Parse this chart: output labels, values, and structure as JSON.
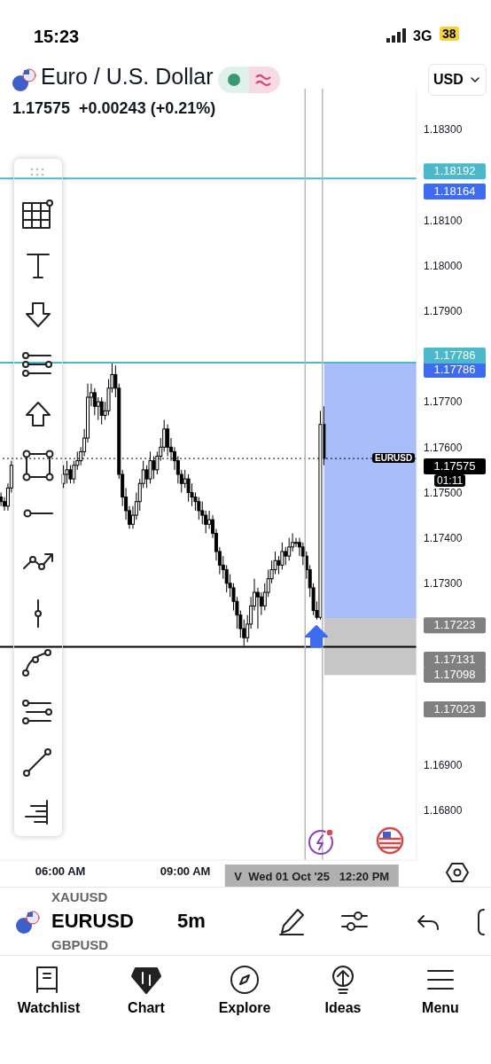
{
  "chart_data": {
    "type": "candlestick",
    "title": "Euro / U.S. Dollar",
    "subtitle": "1.17575  +0.00243 (+0.21%)",
    "color": "#000000",
    "x": [
      4.5833,
      4.6667,
      4.75,
      4.8333,
      6.0833,
      6.1667,
      6.25,
      6.3333,
      6.4167,
      6.5,
      6.5833,
      6.6667,
      6.75,
      6.8333,
      6.9167,
      7,
      7.0833,
      7.1667,
      7.25,
      7.3333,
      7.4167,
      7.5,
      7.5833,
      7.6667,
      7.75,
      7.8333,
      7.9167,
      8,
      8.0833,
      8.1667,
      8.25,
      8.3333,
      8.4167,
      8.5,
      8.5833,
      8.6667,
      8.75,
      8.8333,
      8.9167,
      9,
      9.0833,
      9.1667,
      9.25,
      9.3333,
      9.4167,
      9.5,
      9.5833,
      9.6667,
      9.75,
      9.8333,
      9.9167,
      10,
      10.0833,
      10.1667,
      10.25,
      10.3333,
      10.4167,
      10.5,
      10.5833,
      10.6667,
      10.75,
      10.8333,
      10.9167,
      11,
      11.0833,
      11.1667,
      11.25,
      11.3333,
      11.4167,
      11.5,
      11.5833,
      11.6667,
      11.75,
      11.8333,
      11.9167,
      12,
      12.0833,
      12.1667,
      12.25,
      12.3333
    ],
    "ohlc": [
      [
        1.1749,
        1.175,
        1.1747,
        1.1748
      ],
      [
        1.1748,
        1.1749,
        1.1746,
        1.1747
      ],
      [
        1.1747,
        1.1752,
        1.1746,
        1.1751
      ],
      [
        1.1751,
        1.1757,
        1.175,
        1.1756
      ],
      [
        1.1752,
        1.1756,
        1.1751,
        1.1754
      ],
      [
        1.1754,
        1.1757,
        1.1752,
        1.1755
      ],
      [
        1.1755,
        1.1756,
        1.1752,
        1.1753
      ],
      [
        1.1753,
        1.1757,
        1.1752,
        1.1756
      ],
      [
        1.1756,
        1.1759,
        1.1755,
        1.1757
      ],
      [
        1.1757,
        1.176,
        1.1756,
        1.1759
      ],
      [
        1.1759,
        1.1764,
        1.1758,
        1.1762
      ],
      [
        1.1762,
        1.1774,
        1.1761,
        1.1771
      ],
      [
        1.1771,
        1.1774,
        1.1769,
        1.1772
      ],
      [
        1.1772,
        1.1773,
        1.1767,
        1.1769
      ],
      [
        1.1769,
        1.1771,
        1.1766,
        1.177
      ],
      [
        1.177,
        1.1771,
        1.1765,
        1.1767
      ],
      [
        1.1767,
        1.177,
        1.1766,
        1.1768
      ],
      [
        1.1768,
        1.1775,
        1.1767,
        1.1773
      ],
      [
        1.1773,
        1.17786,
        1.1772,
        1.1776
      ],
      [
        1.1776,
        1.1778,
        1.1771,
        1.1773
      ],
      [
        1.1773,
        1.1774,
        1.1753,
        1.1754
      ],
      [
        1.1754,
        1.1755,
        1.1747,
        1.1749
      ],
      [
        1.1749,
        1.1751,
        1.1744,
        1.1746
      ],
      [
        1.1746,
        1.1747,
        1.1742,
        1.1743
      ],
      [
        1.1743,
        1.1747,
        1.1742,
        1.1745
      ],
      [
        1.1745,
        1.175,
        1.1744,
        1.1748
      ],
      [
        1.1748,
        1.1753,
        1.1746,
        1.1752
      ],
      [
        1.1752,
        1.1757,
        1.1751,
        1.1755
      ],
      [
        1.1755,
        1.1756,
        1.1751,
        1.1753
      ],
      [
        1.1753,
        1.1759,
        1.1752,
        1.1757
      ],
      [
        1.1757,
        1.1758,
        1.1753,
        1.1755
      ],
      [
        1.1755,
        1.1759,
        1.1754,
        1.1758
      ],
      [
        1.1758,
        1.1762,
        1.1757,
        1.176
      ],
      [
        1.176,
        1.1766,
        1.1759,
        1.1764
      ],
      [
        1.1764,
        1.1765,
        1.1758,
        1.176
      ],
      [
        1.176,
        1.1762,
        1.1757,
        1.1759
      ],
      [
        1.1759,
        1.176,
        1.1755,
        1.1757
      ],
      [
        1.1757,
        1.1758,
        1.1752,
        1.1754
      ],
      [
        1.1754,
        1.1755,
        1.175,
        1.1752
      ],
      [
        1.1752,
        1.1755,
        1.1751,
        1.1753
      ],
      [
        1.1753,
        1.1754,
        1.1748,
        1.175
      ],
      [
        1.175,
        1.1752,
        1.1747,
        1.1749
      ],
      [
        1.1749,
        1.175,
        1.1746,
        1.1748
      ],
      [
        1.1748,
        1.1749,
        1.1744,
        1.1746
      ],
      [
        1.1746,
        1.1748,
        1.1743,
        1.1745
      ],
      [
        1.1745,
        1.1746,
        1.1741,
        1.1743
      ],
      [
        1.1743,
        1.1746,
        1.1742,
        1.1744
      ],
      [
        1.1744,
        1.1745,
        1.174,
        1.1741
      ],
      [
        1.1741,
        1.1742,
        1.1735,
        1.1737
      ],
      [
        1.1737,
        1.1738,
        1.1732,
        1.1734
      ],
      [
        1.1734,
        1.1736,
        1.1731,
        1.1733
      ],
      [
        1.1733,
        1.1734,
        1.1728,
        1.173
      ],
      [
        1.173,
        1.1732,
        1.1727,
        1.1729
      ],
      [
        1.1729,
        1.173,
        1.1724,
        1.1726
      ],
      [
        1.1726,
        1.1727,
        1.172,
        1.1723
      ],
      [
        1.1723,
        1.1724,
        1.1718,
        1.172
      ],
      [
        1.172,
        1.1722,
        1.17162,
        1.1718
      ],
      [
        1.1718,
        1.1723,
        1.1717,
        1.1721
      ],
      [
        1.1721,
        1.1727,
        1.172,
        1.1725
      ],
      [
        1.1725,
        1.1731,
        1.1724,
        1.1728
      ],
      [
        1.1728,
        1.1729,
        1.172,
        1.1727
      ],
      [
        1.1727,
        1.1728,
        1.1723,
        1.1725
      ],
      [
        1.1725,
        1.173,
        1.1724,
        1.1728
      ],
      [
        1.1728,
        1.1733,
        1.1727,
        1.1731
      ],
      [
        1.1731,
        1.1735,
        1.173,
        1.1733
      ],
      [
        1.1733,
        1.1737,
        1.1732,
        1.1735
      ],
      [
        1.1735,
        1.1736,
        1.1732,
        1.1734
      ],
      [
        1.1734,
        1.1739,
        1.1733,
        1.1737
      ],
      [
        1.1737,
        1.1738,
        1.1734,
        1.1736
      ],
      [
        1.1736,
        1.174,
        1.1735,
        1.1738
      ],
      [
        1.1738,
        1.1741,
        1.1737,
        1.1739
      ],
      [
        1.1739,
        1.174,
        1.1738,
        1.1739
      ],
      [
        1.1739,
        1.174,
        1.1736,
        1.1738
      ],
      [
        1.1738,
        1.1739,
        1.1734,
        1.1736
      ],
      [
        1.1736,
        1.1737,
        1.1731,
        1.1733
      ],
      [
        1.1733,
        1.1734,
        1.1727,
        1.1729
      ],
      [
        1.1729,
        1.173,
        1.1723,
        1.1724
      ],
      [
        1.1724,
        1.1726,
        1.1722,
        1.17225
      ],
      [
        1.17225,
        1.1768,
        1.1722,
        1.1765
      ],
      [
        1.1765,
        1.1769,
        1.1756,
        1.17575
      ]
    ],
    "xlim": [
      4.55,
      14.55
    ],
    "xticks": [
      {
        "value": 6,
        "label": "06:00 AM"
      },
      {
        "value": 9,
        "label": "09:00 AM"
      }
    ],
    "ylim": [
      1.1669,
      1.1839
    ],
    "yticks": [
      {
        "value": 1.168,
        "label": "1.16800"
      },
      {
        "value": 1.169,
        "label": "1.16900"
      },
      {
        "value": 1.173,
        "label": "1.17300"
      },
      {
        "value": 1.174,
        "label": "1.17400"
      },
      {
        "value": 1.175,
        "label": "1.17500"
      },
      {
        "value": 1.176,
        "label": "1.17600"
      },
      {
        "value": 1.177,
        "label": "1.17700"
      },
      {
        "value": 1.179,
        "label": "1.17900"
      },
      {
        "value": 1.18,
        "label": "1.18000"
      },
      {
        "value": 1.181,
        "label": "1.18100"
      },
      {
        "value": 1.183,
        "label": "1.18300"
      }
    ],
    "ref_lines": [
      {
        "axis": "y",
        "value": 1.18192,
        "label": "1.18192",
        "color": "#4bb8cc"
      },
      {
        "axis": "y",
        "value": 1.17786,
        "label": "1.17786",
        "color": "#4bb8cc"
      },
      {
        "axis": "y",
        "value": 1.17575,
        "label": "1.17575",
        "color": "#000000",
        "line_style": "dotted"
      },
      {
        "axis": "y",
        "value": 1.1716,
        "color": "#000000"
      },
      {
        "axis": "x",
        "value": 11.875,
        "color": "#b8b8b8"
      },
      {
        "axis": "x",
        "value": 12.29,
        "label": "V  Wed 01 Oct '25   12:20 PM",
        "color": "#b8b8b8"
      }
    ],
    "bands": [
      {
        "axis": "y",
        "from": 1.17223,
        "to": 1.17786,
        "label": "1.17786",
        "color": "#3d6cf2"
      },
      {
        "axis": "y",
        "from": 1.17098,
        "to": 1.17223,
        "label": "1.17223",
        "color": "#808080"
      }
    ],
    "annotations": [
      "15:23",
      "3G",
      "38",
      "USD",
      "EURUSD",
      "01:11",
      "XAUUSD",
      "EURUSD",
      "GBPUSD",
      "5m",
      "Watchlist",
      "Chart",
      "Explore",
      "Ideas",
      "Menu",
      "1.18164",
      "1.17131",
      "1.17098",
      "1.17023"
    ]
  }
}
